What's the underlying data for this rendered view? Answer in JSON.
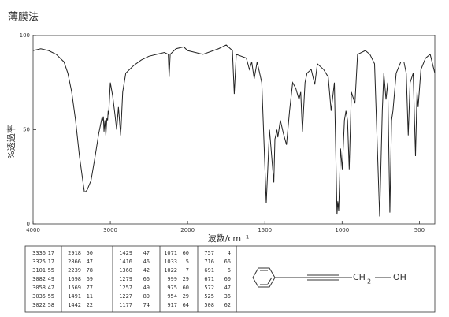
{
  "chart_data": {
    "type": "line",
    "title": "薄膜法",
    "xlabel": "波数/cm⁻¹",
    "ylabel": "%透過率",
    "xlim": [
      4000,
      400
    ],
    "xscale_break": 2000,
    "xticks": [
      4000,
      3000,
      2000,
      1500,
      1000,
      500
    ],
    "ylim": [
      0,
      100
    ],
    "yticks": [
      0,
      50,
      100
    ],
    "color": "#222222",
    "x": [
      4000,
      3900,
      3800,
      3700,
      3600,
      3550,
      3500,
      3450,
      3400,
      3350,
      3336,
      3325,
      3300,
      3250,
      3200,
      3150,
      3110,
      3101,
      3090,
      3082,
      3070,
      3058,
      3045,
      3035,
      3028,
      3022,
      3000,
      2970,
      2940,
      2918,
      2895,
      2866,
      2840,
      2800,
      2700,
      2600,
      2500,
      2400,
      2300,
      2250,
      2239,
      2225,
      2150,
      2050,
      2000,
      1950,
      1900,
      1800,
      1750,
      1710,
      1698,
      1685,
      1620,
      1600,
      1585,
      1569,
      1550,
      1520,
      1491,
      1470,
      1442,
      1435,
      1429,
      1422,
      1416,
      1400,
      1380,
      1360,
      1340,
      1320,
      1300,
      1279,
      1268,
      1257,
      1240,
      1227,
      1200,
      1177,
      1160,
      1120,
      1090,
      1071,
      1050,
      1033,
      1028,
      1022,
      1010,
      999,
      985,
      975,
      965,
      954,
      940,
      917,
      900,
      850,
      820,
      790,
      757,
      740,
      730,
      716,
      705,
      691,
      680,
      671,
      650,
      620,
      600,
      585,
      572,
      560,
      540,
      525,
      515,
      508,
      490,
      460,
      430,
      400
    ],
    "values": [
      92,
      93,
      92,
      90,
      86,
      80,
      70,
      55,
      36,
      21,
      17,
      17,
      18,
      23,
      35,
      48,
      56,
      55,
      57,
      49,
      55,
      47,
      56,
      55,
      60,
      58,
      75,
      68,
      58,
      50,
      62,
      47,
      70,
      80,
      84,
      87,
      89,
      90,
      91,
      90,
      78,
      90,
      93,
      94,
      92,
      91,
      90,
      93,
      95,
      92,
      69,
      90,
      88,
      82,
      86,
      77,
      86,
      75,
      11,
      50,
      22,
      45,
      47,
      50,
      46,
      55,
      48,
      42,
      60,
      75,
      72,
      66,
      70,
      49,
      75,
      80,
      82,
      74,
      85,
      82,
      78,
      60,
      75,
      5,
      12,
      7,
      40,
      29,
      55,
      60,
      55,
      29,
      70,
      64,
      90,
      92,
      90,
      85,
      4,
      60,
      80,
      66,
      75,
      6,
      55,
      60,
      80,
      86,
      86,
      80,
      47,
      75,
      80,
      36,
      70,
      62,
      82,
      88,
      90,
      80
    ]
  },
  "peak_table": {
    "rows": [
      [
        "3336",
        "17",
        "2918",
        "50",
        "1429",
        "47",
        "1071",
        "60",
        "757",
        "4"
      ],
      [
        "3325",
        "17",
        "2866",
        "47",
        "1416",
        "46",
        "1033",
        "5",
        "716",
        "66"
      ],
      [
        "3101",
        "55",
        "2239",
        "78",
        "1360",
        "42",
        "1022",
        "7",
        "691",
        "6"
      ],
      [
        "3082",
        "49",
        "1698",
        "69",
        "1279",
        "66",
        "999",
        "29",
        "671",
        "60"
      ],
      [
        "3058",
        "47",
        "1569",
        "77",
        "1257",
        "49",
        "975",
        "60",
        "572",
        "47"
      ],
      [
        "3035",
        "55",
        "1491",
        "11",
        "1227",
        "80",
        "954",
        "29",
        "525",
        "36"
      ],
      [
        "3022",
        "58",
        "1442",
        "22",
        "1177",
        "74",
        "917",
        "64",
        "508",
        "62"
      ]
    ]
  },
  "structure": {
    "group": "CH",
    "subscript": "2",
    "end": "OH"
  }
}
